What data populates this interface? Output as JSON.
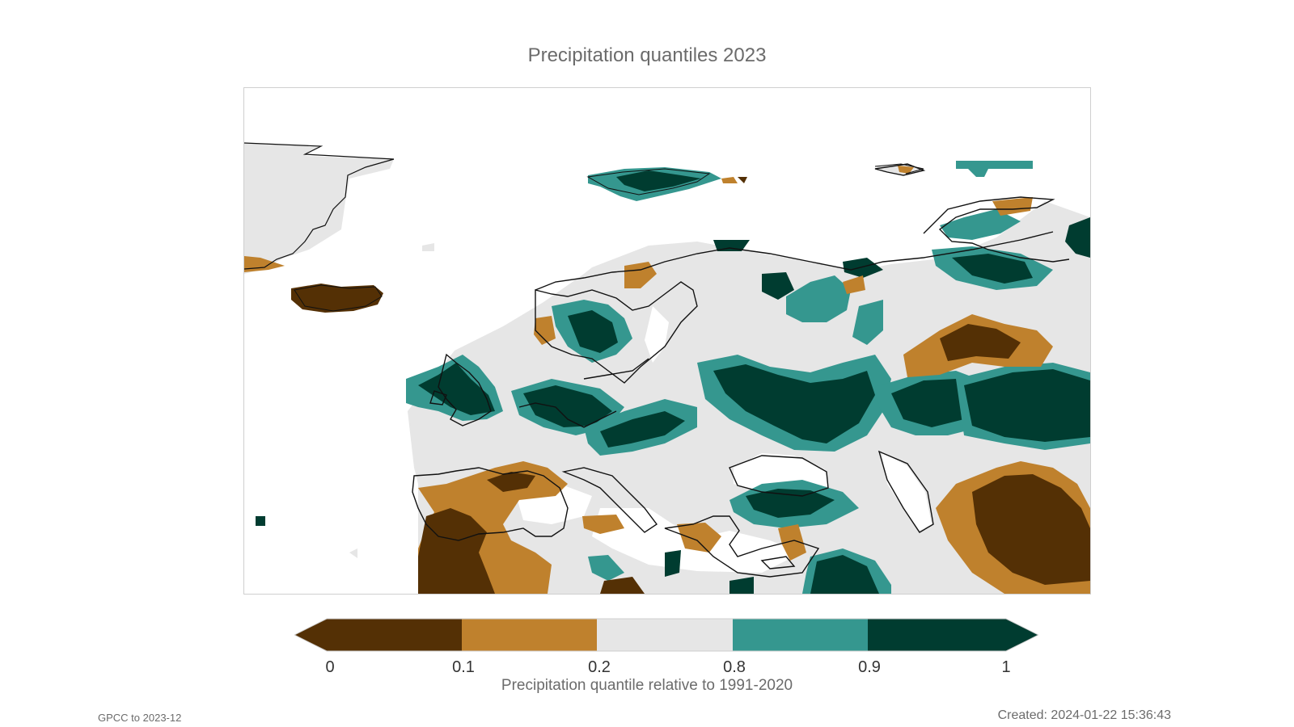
{
  "title": "Precipitation quantiles 2023",
  "colorbar": {
    "label": "Precipitation quantile relative to 1991-2020",
    "ticks": [
      "0",
      "0.1",
      "0.2",
      "0.8",
      "0.9",
      "1"
    ],
    "bins": [
      {
        "range": "0-0.1",
        "color": "#543005"
      },
      {
        "range": "0.1-0.2",
        "color": "#bf812d"
      },
      {
        "range": "0.2-0.8",
        "color": "#e6e6e6"
      },
      {
        "range": "0.8-0.9",
        "color": "#35978f"
      },
      {
        "range": "0.9-1",
        "color": "#003c30"
      }
    ]
  },
  "footer": {
    "source": "GPCC to 2023-12",
    "created": "Created: 2024-01-22 15:36:43"
  }
}
